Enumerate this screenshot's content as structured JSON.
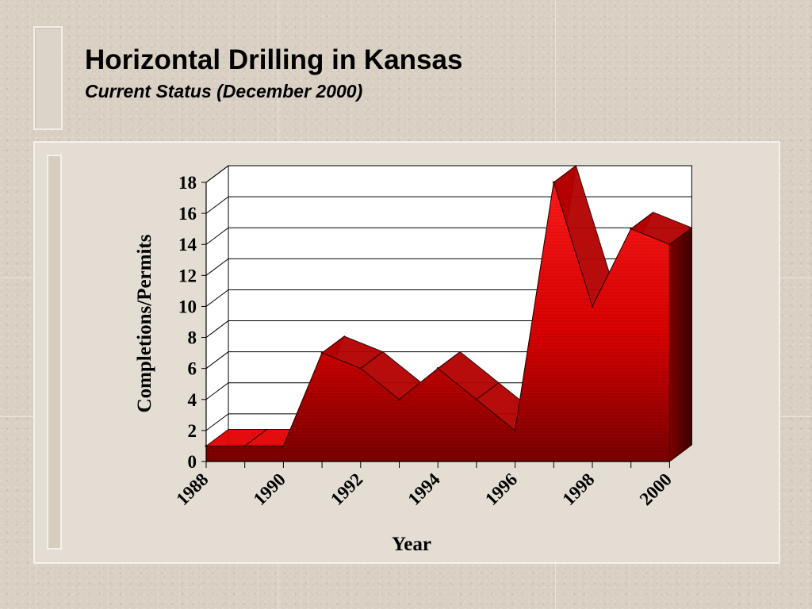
{
  "slide": {
    "title": "Horizontal Drilling in Kansas",
    "subtitle": "Current Status (December 2000)"
  },
  "colors": {
    "front_face": "#e30000",
    "top_face": "#b30000",
    "dark_side": "#5a0000",
    "background": "#d9d0c3"
  },
  "chart_data": {
    "type": "area",
    "style": "3d",
    "x": [
      1988,
      1989,
      1990,
      1991,
      1992,
      1993,
      1994,
      1995,
      1996,
      1997,
      1998,
      1999,
      2000
    ],
    "values": [
      1,
      1,
      1,
      7,
      6,
      4,
      6,
      4,
      2,
      18,
      10,
      15,
      14
    ],
    "x_tick_labels": [
      "1988",
      "1990",
      "1992",
      "1994",
      "1996",
      "1998",
      "2000"
    ],
    "y_tick_labels": [
      "0",
      "2",
      "4",
      "6",
      "8",
      "10",
      "12",
      "14",
      "16",
      "18"
    ],
    "ylim": [
      0,
      18
    ],
    "xlabel": "Year",
    "ylabel": "Completions/Permits",
    "grid": true,
    "legend": "none"
  }
}
